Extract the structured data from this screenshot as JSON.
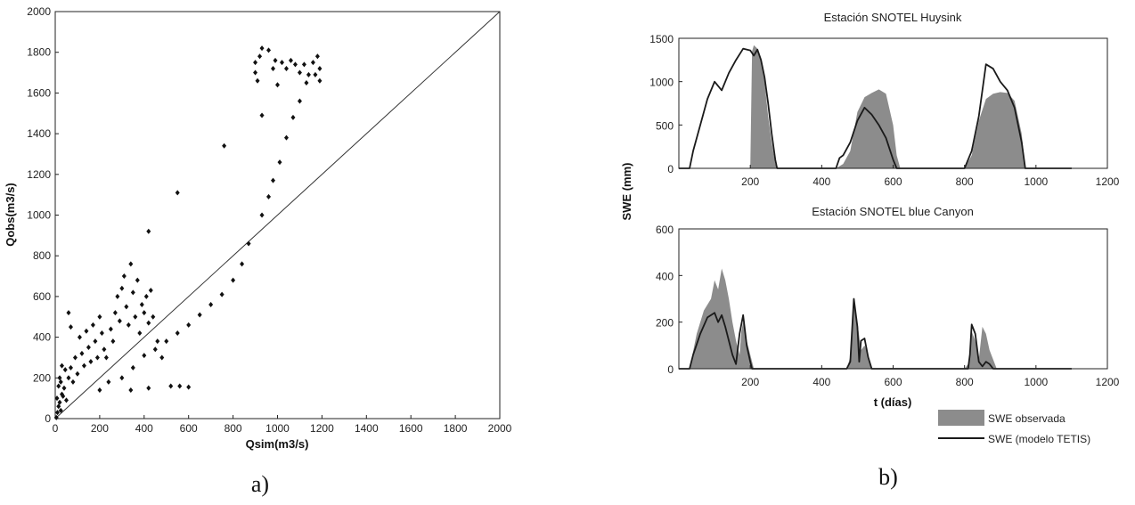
{
  "colors": {
    "points": "#111111",
    "observed_fill": "#8c8c8c",
    "model_line": "#1a1a1a",
    "axes": "#222222"
  },
  "chart_data": [
    {
      "type": "scatter",
      "panel_label": "a)",
      "title": "",
      "xlabel": "Qsim(m3/s)",
      "ylabel": "Qobs(m3/s)",
      "xlim": [
        0,
        2000
      ],
      "ylim": [
        0,
        2000
      ],
      "xticks": [
        "0",
        "200",
        "400",
        "600",
        "800",
        "1000",
        "1200",
        "1400",
        "1600",
        "1800",
        "2000"
      ],
      "yticks": [
        "0",
        "200",
        "400",
        "600",
        "800",
        "1000",
        "1200",
        "1400",
        "1600",
        "1800",
        "2000"
      ],
      "reference_line": {
        "x": [
          0,
          2000
        ],
        "y": [
          0,
          2000
        ]
      },
      "series": [
        {
          "points": [
            [
              5,
              5
            ],
            [
              10,
              30
            ],
            [
              15,
              60
            ],
            [
              20,
              80
            ],
            [
              8,
              100
            ],
            [
              25,
              40
            ],
            [
              30,
              120
            ],
            [
              40,
              150
            ],
            [
              50,
              90
            ],
            [
              60,
              200
            ],
            [
              70,
              250
            ],
            [
              80,
              180
            ],
            [
              90,
              300
            ],
            [
              100,
              220
            ],
            [
              110,
              400
            ],
            [
              120,
              320
            ],
            [
              130,
              260
            ],
            [
              140,
              430
            ],
            [
              150,
              350
            ],
            [
              160,
              280
            ],
            [
              170,
              460
            ],
            [
              180,
              380
            ],
            [
              190,
              300
            ],
            [
              200,
              500
            ],
            [
              210,
              420
            ],
            [
              220,
              340
            ],
            [
              230,
              300
            ],
            [
              250,
              440
            ],
            [
              260,
              380
            ],
            [
              270,
              520
            ],
            [
              280,
              600
            ],
            [
              290,
              480
            ],
            [
              300,
              640
            ],
            [
              310,
              700
            ],
            [
              320,
              550
            ],
            [
              330,
              460
            ],
            [
              340,
              760
            ],
            [
              350,
              620
            ],
            [
              360,
              500
            ],
            [
              370,
              680
            ],
            [
              380,
              420
            ],
            [
              390,
              560
            ],
            [
              400,
              520
            ],
            [
              410,
              600
            ],
            [
              420,
              470
            ],
            [
              430,
              630
            ],
            [
              440,
              500
            ],
            [
              460,
              380
            ],
            [
              480,
              300
            ],
            [
              520,
              160
            ],
            [
              560,
              160
            ],
            [
              600,
              155
            ],
            [
              340,
              140
            ],
            [
              420,
              150
            ],
            [
              200,
              140
            ],
            [
              240,
              180
            ],
            [
              60,
              520
            ],
            [
              70,
              450
            ],
            [
              300,
              200
            ],
            [
              350,
              250
            ],
            [
              400,
              310
            ],
            [
              450,
              340
            ],
            [
              500,
              380
            ],
            [
              550,
              420
            ],
            [
              600,
              460
            ],
            [
              650,
              510
            ],
            [
              700,
              560
            ],
            [
              750,
              610
            ],
            [
              800,
              680
            ],
            [
              840,
              760
            ],
            [
              870,
              860
            ],
            [
              420,
              920
            ],
            [
              550,
              1110
            ],
            [
              760,
              1340
            ],
            [
              930,
              1000
            ],
            [
              960,
              1090
            ],
            [
              980,
              1170
            ],
            [
              1010,
              1260
            ],
            [
              1040,
              1380
            ],
            [
              1070,
              1480
            ],
            [
              1100,
              1560
            ],
            [
              1130,
              1650
            ],
            [
              910,
              1660
            ],
            [
              900,
              1700
            ],
            [
              900,
              1750
            ],
            [
              920,
              1780
            ],
            [
              930,
              1820
            ],
            [
              960,
              1810
            ],
            [
              990,
              1760
            ],
            [
              1020,
              1750
            ],
            [
              1040,
              1720
            ],
            [
              1060,
              1760
            ],
            [
              1080,
              1740
            ],
            [
              1100,
              1700
            ],
            [
              1140,
              1690
            ],
            [
              1170,
              1690
            ],
            [
              1180,
              1780
            ],
            [
              1190,
              1720
            ],
            [
              1190,
              1660
            ],
            [
              930,
              1490
            ],
            [
              980,
              1720
            ],
            [
              1000,
              1640
            ],
            [
              1160,
              1750
            ],
            [
              1120,
              1740
            ],
            [
              20,
              200
            ],
            [
              15,
              160
            ],
            [
              30,
              260
            ],
            [
              25,
              180
            ],
            [
              45,
              240
            ],
            [
              35,
              110
            ]
          ]
        }
      ]
    },
    {
      "type": "area",
      "panel_label": "b)",
      "title": "Estación SNOTEL Huysink",
      "xlabel": "",
      "ylabel": "SWE (mm)",
      "xlim": [
        0,
        1200
      ],
      "ylim": [
        0,
        1500
      ],
      "xticks": [
        "200",
        "400",
        "600",
        "800",
        "1000",
        "1200"
      ],
      "yticks": [
        "0",
        "500",
        "1000",
        "1500"
      ],
      "series": [
        {
          "name": "SWE observada",
          "x": [
            0,
            200,
            205,
            210,
            220,
            230,
            240,
            250,
            260,
            270,
            280,
            440,
            460,
            480,
            500,
            520,
            540,
            560,
            580,
            600,
            610,
            620,
            800,
            820,
            840,
            860,
            880,
            900,
            920,
            940,
            960,
            970,
            1100
          ],
          "y": [
            0,
            0,
            1350,
            1420,
            1380,
            1250,
            1000,
            600,
            300,
            50,
            0,
            0,
            50,
            200,
            650,
            820,
            870,
            910,
            860,
            500,
            150,
            0,
            0,
            150,
            550,
            800,
            860,
            880,
            870,
            780,
            400,
            0,
            0
          ]
        },
        {
          "name": "SWE (modelo TETIS)",
          "x": [
            0,
            30,
            40,
            60,
            80,
            100,
            120,
            140,
            160,
            180,
            200,
            210,
            220,
            230,
            240,
            250,
            260,
            270,
            275,
            440,
            450,
            460,
            480,
            500,
            520,
            540,
            560,
            580,
            600,
            610,
            800,
            820,
            840,
            860,
            880,
            900,
            920,
            940,
            960,
            970,
            1100
          ],
          "y": [
            0,
            0,
            200,
            500,
            800,
            1000,
            900,
            1100,
            1250,
            1380,
            1360,
            1300,
            1370,
            1250,
            1050,
            750,
            400,
            100,
            0,
            0,
            120,
            150,
            300,
            550,
            700,
            620,
            500,
            350,
            100,
            0,
            0,
            200,
            600,
            1200,
            1150,
            1000,
            900,
            700,
            300,
            0,
            0
          ]
        }
      ]
    },
    {
      "type": "area",
      "panel_label": "",
      "title": "Estación SNOTEL blue Canyon",
      "xlabel": "t (días)",
      "ylabel": "SWE (mm)",
      "xlim": [
        0,
        1200
      ],
      "ylim": [
        0,
        600
      ],
      "xticks": [
        "200",
        "400",
        "600",
        "800",
        "1000",
        "1200"
      ],
      "yticks": [
        "0",
        "200",
        "400",
        "600"
      ],
      "series": [
        {
          "name": "SWE observada",
          "x": [
            0,
            30,
            50,
            70,
            90,
            100,
            110,
            120,
            130,
            140,
            150,
            160,
            170,
            175,
            180,
            190,
            200,
            210,
            470,
            480,
            490,
            500,
            510,
            520,
            530,
            540,
            800,
            810,
            815,
            820,
            830,
            840,
            850,
            860,
            870,
            880,
            890
          ],
          "y": [
            0,
            0,
            150,
            250,
            300,
            380,
            340,
            430,
            380,
            300,
            200,
            120,
            60,
            160,
            200,
            120,
            60,
            0,
            0,
            50,
            270,
            200,
            80,
            100,
            60,
            0,
            0,
            20,
            80,
            160,
            120,
            40,
            180,
            150,
            80,
            40,
            0
          ]
        },
        {
          "name": "SWE (modelo TETIS)",
          "x": [
            0,
            30,
            40,
            60,
            80,
            100,
            110,
            120,
            130,
            140,
            150,
            160,
            170,
            180,
            190,
            200,
            205,
            470,
            480,
            490,
            500,
            505,
            510,
            520,
            530,
            540,
            810,
            815,
            820,
            830,
            840,
            850,
            860,
            870,
            880,
            890,
            1100
          ],
          "y": [
            0,
            0,
            60,
            150,
            220,
            240,
            200,
            230,
            180,
            120,
            60,
            20,
            150,
            230,
            100,
            30,
            0,
            0,
            30,
            300,
            180,
            30,
            120,
            130,
            50,
            0,
            0,
            60,
            190,
            150,
            30,
            10,
            30,
            20,
            0,
            0,
            0
          ]
        }
      ],
      "legend": {
        "position": "bottom-right",
        "entries": [
          "SWE observada",
          "SWE (modelo TETIS)"
        ]
      }
    }
  ]
}
